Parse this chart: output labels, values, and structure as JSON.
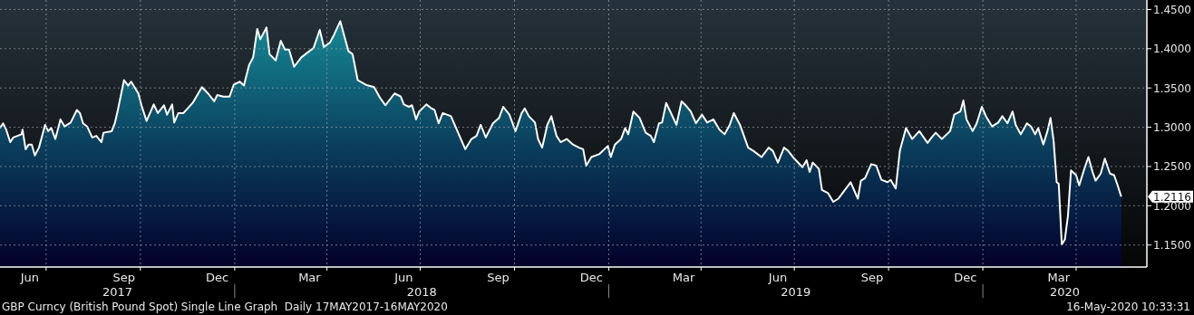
{
  "chart_data": {
    "type": "area",
    "title": "GBP Curncy (British Pound Spot) Single Line Graph  Daily 17MAY2017-16MAY2020",
    "x": [
      "2017-05-17",
      "2017-05-20",
      "2017-05-23",
      "2017-05-27",
      "2017-05-30",
      "2017-06-07",
      "2017-06-08",
      "2017-06-11",
      "2017-06-14",
      "2017-06-17",
      "2017-06-20",
      "2017-06-24",
      "2017-06-30",
      "2017-07-03",
      "2017-07-06",
      "2017-07-10",
      "2017-07-15",
      "2017-07-19",
      "2017-07-25",
      "2017-07-31",
      "2017-08-03",
      "2017-08-06",
      "2017-08-10",
      "2017-08-15",
      "2017-08-19",
      "2017-08-24",
      "2017-08-26",
      "2017-09-03",
      "2017-09-06",
      "2017-09-09",
      "2017-09-15",
      "2017-09-19",
      "2017-09-22",
      "2017-09-29",
      "2017-10-02",
      "2017-10-07",
      "2017-10-14",
      "2017-10-18",
      "2017-10-24",
      "2017-10-27",
      "2017-11-01",
      "2017-11-03",
      "2017-11-07",
      "2017-11-12",
      "2017-11-21",
      "2017-11-30",
      "2017-12-06",
      "2017-12-12",
      "2017-12-15",
      "2017-12-21",
      "2017-12-27",
      "2017-12-31",
      "2018-01-06",
      "2018-01-10",
      "2018-01-15",
      "2018-01-19",
      "2018-01-23",
      "2018-01-26",
      "2018-02-01",
      "2018-02-04",
      "2018-02-10",
      "2018-02-15",
      "2018-02-19",
      "2018-02-23",
      "2018-02-28",
      "2018-03-07",
      "2018-03-13",
      "2018-03-19",
      "2018-03-25",
      "2018-03-29",
      "2018-04-04",
      "2018-04-08",
      "2018-04-14",
      "2018-04-22",
      "2018-04-26",
      "2018-05-01",
      "2018-05-09",
      "2018-05-17",
      "2018-05-23",
      "2018-05-28",
      "2018-06-06",
      "2018-06-12",
      "2018-06-15",
      "2018-06-20",
      "2018-06-23",
      "2018-06-27",
      "2018-06-30",
      "2018-07-07",
      "2018-07-12",
      "2018-07-15",
      "2018-07-19",
      "2018-07-23",
      "2018-07-31",
      "2018-08-07",
      "2018-08-14",
      "2018-08-20",
      "2018-08-25",
      "2018-08-29",
      "2018-09-03",
      "2018-09-10",
      "2018-09-16",
      "2018-09-20",
      "2018-09-26",
      "2018-10-02",
      "2018-10-08",
      "2018-10-11",
      "2018-10-15",
      "2018-10-21",
      "2018-10-24",
      "2018-10-28",
      "2018-11-02",
      "2018-11-06",
      "2018-11-11",
      "2018-11-15",
      "2018-11-21",
      "2018-11-27",
      "2018-12-03",
      "2018-12-07",
      "2018-12-10",
      "2018-12-15",
      "2018-12-23",
      "2018-12-31",
      "2019-01-03",
      "2019-01-07",
      "2019-01-13",
      "2019-01-17",
      "2019-01-20",
      "2019-01-25",
      "2019-01-31",
      "2019-02-06",
      "2019-02-11",
      "2019-02-14",
      "2019-02-19",
      "2019-02-22",
      "2019-02-26",
      "2019-03-02",
      "2019-03-08",
      "2019-03-13",
      "2019-03-17",
      "2019-03-22",
      "2019-03-27",
      "2019-04-02",
      "2019-04-07",
      "2019-04-13",
      "2019-04-19",
      "2019-04-24",
      "2019-04-29",
      "2019-05-03",
      "2019-05-09",
      "2019-05-17",
      "2019-05-22",
      "2019-05-30",
      "2019-06-06",
      "2019-06-10",
      "2019-06-15",
      "2019-06-21",
      "2019-06-25",
      "2019-07-01",
      "2019-07-09",
      "2019-07-13",
      "2019-07-16",
      "2019-07-19",
      "2019-07-25",
      "2019-07-28",
      "2019-08-03",
      "2019-08-08",
      "2019-08-13",
      "2019-08-17",
      "2019-08-25",
      "2019-09-01",
      "2019-09-04",
      "2019-09-08",
      "2019-09-14",
      "2019-09-19",
      "2019-09-24",
      "2019-09-30",
      "2019-10-03",
      "2019-10-08",
      "2019-10-12",
      "2019-10-18",
      "2019-10-24",
      "2019-10-31",
      "2019-11-08",
      "2019-11-12",
      "2019-11-16",
      "2019-11-22",
      "2019-11-30",
      "2019-12-04",
      "2019-12-10",
      "2019-12-13",
      "2019-12-16",
      "2019-12-22",
      "2019-12-26",
      "2019-12-31",
      "2020-01-04",
      "2020-01-10",
      "2020-01-16",
      "2020-01-20",
      "2020-01-25",
      "2020-01-30",
      "2020-02-02",
      "2020-02-07",
      "2020-02-13",
      "2020-02-17",
      "2020-02-21",
      "2020-02-24",
      "2020-02-29",
      "2020-03-04",
      "2020-03-07",
      "2020-03-10",
      "2020-03-13",
      "2020-03-15",
      "2020-03-18",
      "2020-03-21",
      "2020-03-24",
      "2020-03-27",
      "2020-04-01",
      "2020-04-04",
      "2020-04-09",
      "2020-04-13",
      "2020-04-17",
      "2020-04-20",
      "2020-04-25",
      "2020-04-29",
      "2020-05-04",
      "2020-05-08",
      "2020-05-11",
      "2020-05-15"
    ],
    "series": [
      {
        "color": "#ffffff",
        "values": [
          1.299,
          1.305,
          1.297,
          1.281,
          1.287,
          1.291,
          1.297,
          1.272,
          1.278,
          1.278,
          1.264,
          1.274,
          1.303,
          1.295,
          1.299,
          1.285,
          1.31,
          1.301,
          1.306,
          1.322,
          1.318,
          1.305,
          1.301,
          1.287,
          1.289,
          1.281,
          1.293,
          1.295,
          1.305,
          1.322,
          1.36,
          1.353,
          1.358,
          1.343,
          1.328,
          1.308,
          1.329,
          1.318,
          1.328,
          1.316,
          1.329,
          1.306,
          1.318,
          1.318,
          1.331,
          1.351,
          1.343,
          1.333,
          1.341,
          1.339,
          1.339,
          1.354,
          1.358,
          1.353,
          1.379,
          1.389,
          1.425,
          1.412,
          1.427,
          1.393,
          1.385,
          1.41,
          1.399,
          1.399,
          1.377,
          1.389,
          1.395,
          1.401,
          1.424,
          1.402,
          1.408,
          1.418,
          1.435,
          1.397,
          1.393,
          1.36,
          1.354,
          1.351,
          1.337,
          1.328,
          1.343,
          1.339,
          1.329,
          1.326,
          1.328,
          1.31,
          1.32,
          1.329,
          1.324,
          1.322,
          1.305,
          1.318,
          1.314,
          1.293,
          1.272,
          1.285,
          1.289,
          1.303,
          1.287,
          1.305,
          1.312,
          1.326,
          1.316,
          1.295,
          1.318,
          1.324,
          1.314,
          1.306,
          1.285,
          1.274,
          1.303,
          1.314,
          1.289,
          1.281,
          1.285,
          1.278,
          1.274,
          1.272,
          1.251,
          1.262,
          1.266,
          1.276,
          1.262,
          1.278,
          1.285,
          1.299,
          1.291,
          1.32,
          1.312,
          1.293,
          1.289,
          1.281,
          1.305,
          1.306,
          1.331,
          1.32,
          1.303,
          1.333,
          1.328,
          1.32,
          1.305,
          1.316,
          1.306,
          1.31,
          1.297,
          1.291,
          1.303,
          1.318,
          1.303,
          1.274,
          1.27,
          1.262,
          1.274,
          1.27,
          1.255,
          1.274,
          1.27,
          1.26,
          1.249,
          1.258,
          1.243,
          1.255,
          1.247,
          1.22,
          1.216,
          1.205,
          1.209,
          1.216,
          1.23,
          1.209,
          1.232,
          1.235,
          1.253,
          1.251,
          1.233,
          1.23,
          1.233,
          1.222,
          1.27,
          1.299,
          1.285,
          1.295,
          1.28,
          1.287,
          1.293,
          1.285,
          1.295,
          1.316,
          1.32,
          1.334,
          1.31,
          1.295,
          1.305,
          1.326,
          1.314,
          1.301,
          1.306,
          1.314,
          1.305,
          1.32,
          1.303,
          1.291,
          1.305,
          1.301,
          1.291,
          1.299,
          1.278,
          1.295,
          1.312,
          1.283,
          1.23,
          1.228,
          1.151,
          1.157,
          1.187,
          1.245,
          1.239,
          1.226,
          1.247,
          1.262,
          1.243,
          1.232,
          1.241,
          1.26,
          1.241,
          1.239,
          1.228,
          1.2116
        ]
      }
    ],
    "xlim": [
      "2017-05-17",
      "2020-06-09"
    ],
    "xticks": [
      {
        "value": "2017-06-15",
        "label": "Jun"
      },
      {
        "value": "2017-07-01",
        "label": null
      },
      {
        "value": "2017-09-15",
        "label": "Sep"
      },
      {
        "value": "2017-10-01",
        "label": null
      },
      {
        "value": "2017-12-15",
        "label": "Dec"
      },
      {
        "value": "2018-01-01",
        "label": null
      },
      {
        "value": "2018-03-15",
        "label": "Mar"
      },
      {
        "value": "2018-04-01",
        "label": null
      },
      {
        "value": "2018-06-15",
        "label": "Jun"
      },
      {
        "value": "2018-07-01",
        "label": null
      },
      {
        "value": "2018-09-15",
        "label": "Sep"
      },
      {
        "value": "2018-10-01",
        "label": null
      },
      {
        "value": "2018-12-15",
        "label": "Dec"
      },
      {
        "value": "2019-01-01",
        "label": null
      },
      {
        "value": "2019-03-15",
        "label": "Mar"
      },
      {
        "value": "2019-04-01",
        "label": null
      },
      {
        "value": "2019-06-15",
        "label": "Jun"
      },
      {
        "value": "2019-07-01",
        "label": null
      },
      {
        "value": "2019-09-15",
        "label": "Sep"
      },
      {
        "value": "2019-10-01",
        "label": null
      },
      {
        "value": "2019-12-15",
        "label": "Dec"
      },
      {
        "value": "2020-01-01",
        "label": null
      },
      {
        "value": "2020-03-15",
        "label": "Mar"
      },
      {
        "value": "2020-04-01",
        "label": null
      }
    ],
    "ylim": [
      1.122,
      1.462
    ],
    "yticks": [
      {
        "value": 1.15,
        "label": "1.1500"
      },
      {
        "value": 1.2,
        "label": "1.2000"
      },
      {
        "value": 1.25,
        "label": "1.2500"
      },
      {
        "value": 1.3,
        "label": "1.3000"
      },
      {
        "value": 1.35,
        "label": "1.3500"
      },
      {
        "value": 1.4,
        "label": "1.4000"
      },
      {
        "value": 1.45,
        "label": "1.4500"
      }
    ],
    "grid": true,
    "annotations": [
      "2017",
      "2018",
      "2019",
      "2020",
      "1.2116",
      "16-May-2020 10:33:31"
    ]
  }
}
